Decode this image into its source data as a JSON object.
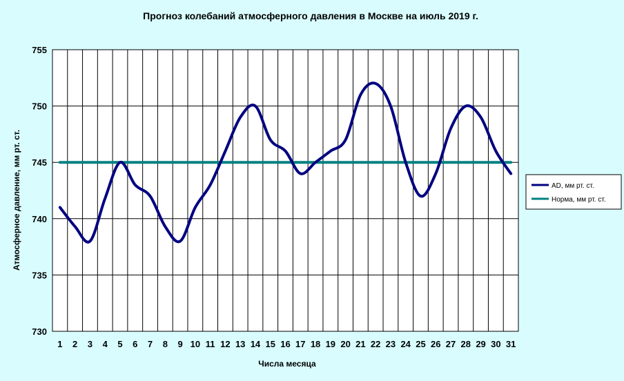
{
  "chart_data": {
    "type": "line",
    "title": "Прогноз колебаний атмосферного давления в Москве на июль 2019 г.",
    "xlabel": "Числа месяца",
    "ylabel": "Атмосферное давление, мм рт. ст.",
    "x": [
      1,
      2,
      3,
      4,
      5,
      6,
      7,
      8,
      9,
      10,
      11,
      12,
      13,
      14,
      15,
      16,
      17,
      18,
      19,
      20,
      21,
      22,
      23,
      24,
      25,
      26,
      27,
      28,
      29,
      30,
      31
    ],
    "ylim": [
      730,
      755
    ],
    "yticks": [
      730,
      735,
      740,
      745,
      750,
      755
    ],
    "grid": true,
    "legend_position": "right",
    "series": [
      {
        "name": "AD, мм рт. ст.",
        "color": "#000080",
        "values": [
          741,
          739.3,
          738,
          741.8,
          745,
          743,
          742,
          739.3,
          738,
          741,
          743,
          746,
          749,
          750,
          747,
          746,
          744,
          745,
          746,
          747,
          751,
          752,
          750,
          745,
          742,
          744,
          748,
          750,
          749,
          746,
          744
        ]
      },
      {
        "name": "Норма, мм рт. ст.",
        "color": "#008080",
        "values": [
          745,
          745,
          745,
          745,
          745,
          745,
          745,
          745,
          745,
          745,
          745,
          745,
          745,
          745,
          745,
          745,
          745,
          745,
          745,
          745,
          745,
          745,
          745,
          745,
          745,
          745,
          745,
          745,
          745,
          745,
          745
        ]
      }
    ]
  }
}
